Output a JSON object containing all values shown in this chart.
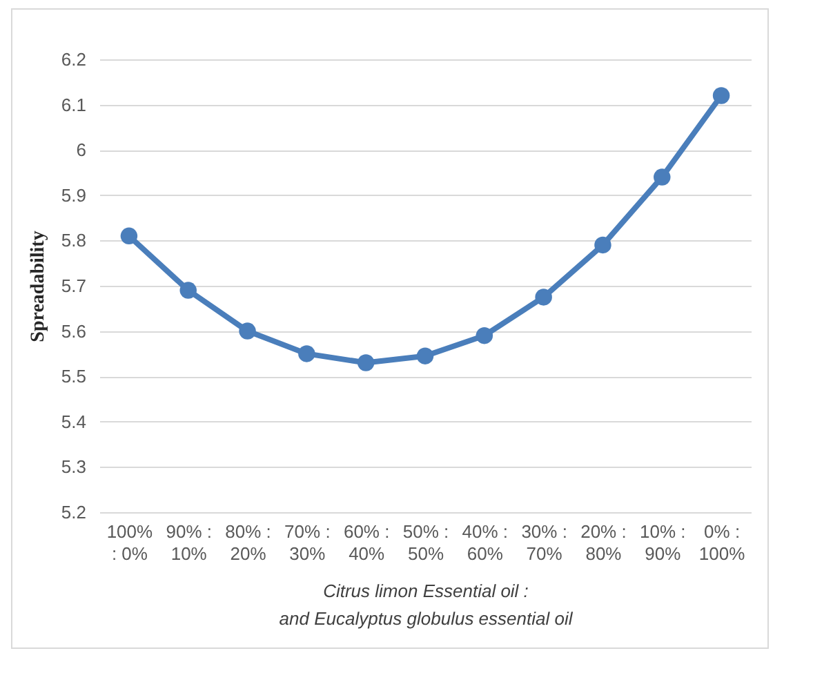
{
  "chart_data": {
    "type": "line",
    "xlabel": "Citrus limon Essential oil :\nand Eucalyptus globulus essential oil",
    "ylabel": "Spreadability",
    "categories": [
      "100% : 0%",
      "90% : 10%",
      "80% : 20%",
      "70% : 30%",
      "60% : 40%",
      "50% : 50%",
      "40% : 60%",
      "30% : 70%",
      "20% : 80%",
      "10% : 90%",
      "0% : 100%"
    ],
    "series": [
      {
        "color": "#4a7ebb",
        "values": [
          5.81,
          5.69,
          5.6,
          5.55,
          5.53,
          5.545,
          5.59,
          5.675,
          5.79,
          5.94,
          6.12
        ]
      }
    ],
    "ylim": [
      5.2,
      6.2
    ],
    "yticks": [
      5.2,
      5.3,
      5.4,
      5.5,
      5.6,
      5.7,
      5.8,
      5.9,
      {
        "value": 6,
        "label": "6"
      },
      6.1,
      6.2
    ],
    "grid": "y",
    "marker": "circle",
    "line_style": "solid"
  }
}
